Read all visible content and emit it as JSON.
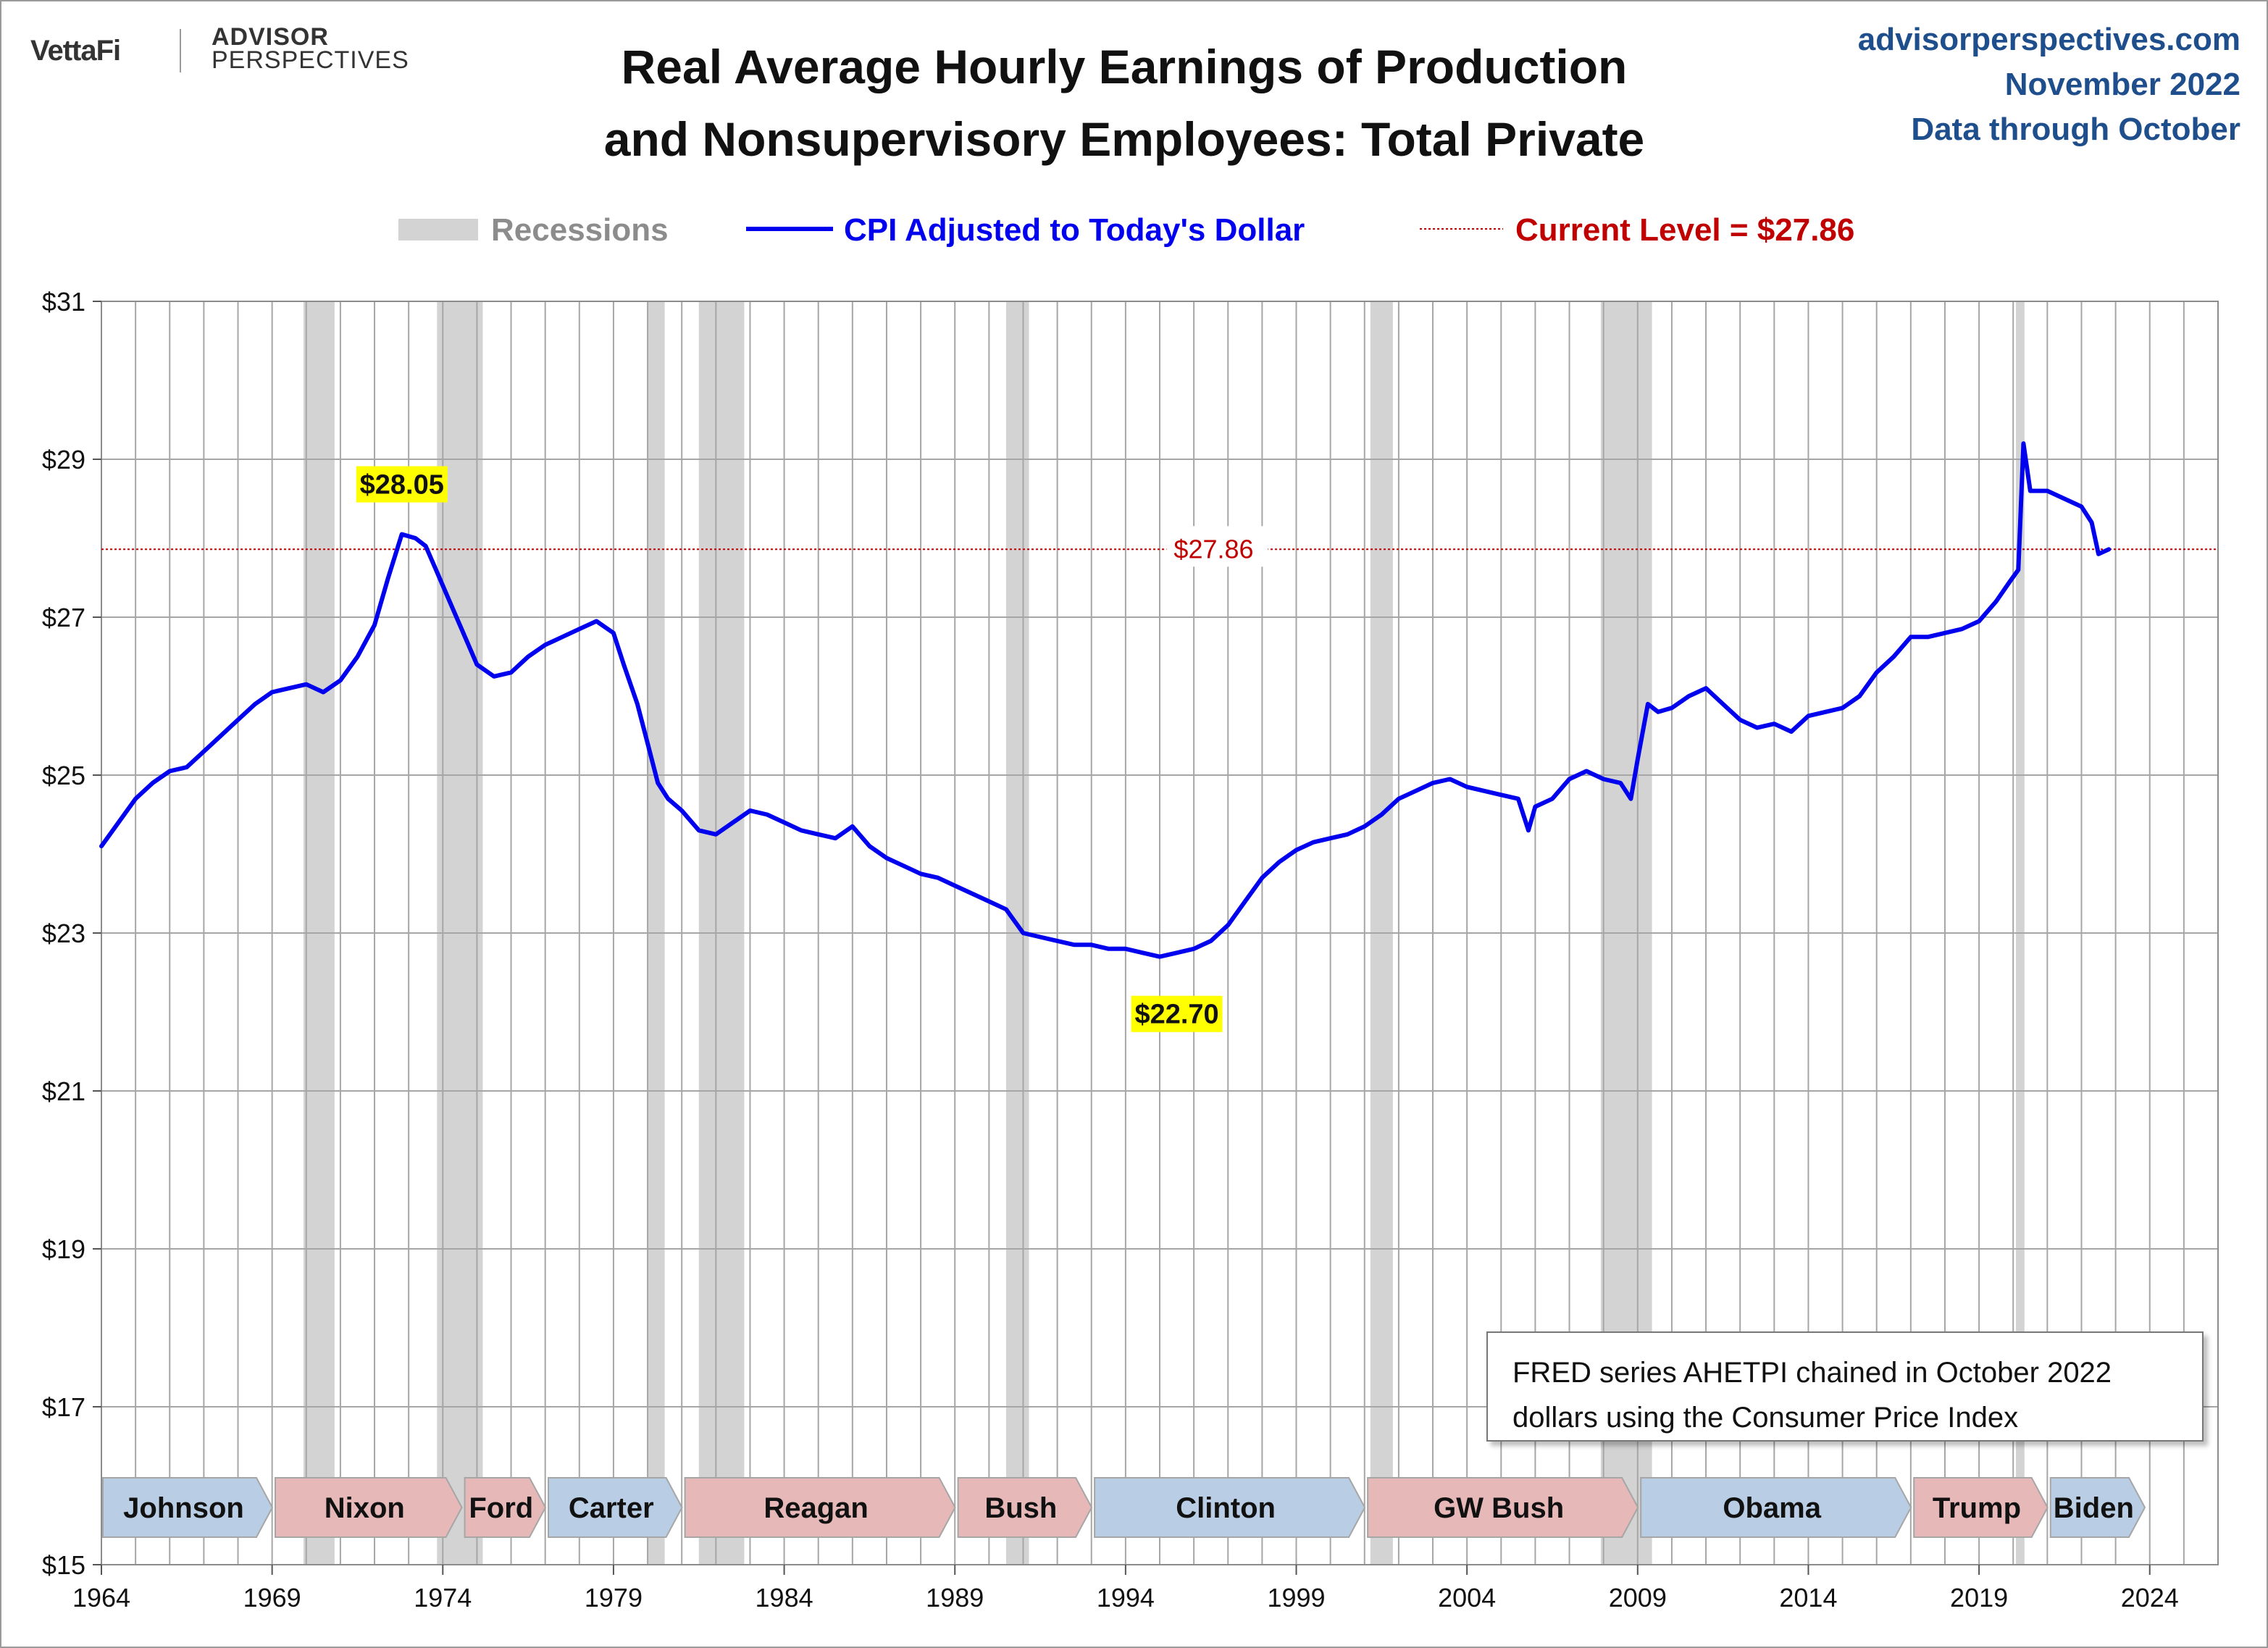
{
  "brand": {
    "vettafi": "VettaFi",
    "advisor": "ADVISOR",
    "perspectives": "PERSPECTIVES"
  },
  "header": {
    "title_line1": "Real Average Hourly Earnings of Production",
    "title_line2": "and Nonsupervisory Employees: Total Private",
    "site": "advisorperspectives.com",
    "date": "November 2022",
    "data_through": "Data through October"
  },
  "legend": {
    "recessions": "Recessions",
    "series": "CPI Adjusted to Today's Dollar",
    "current": "Current Level = $27.86"
  },
  "note": {
    "line1": "FRED series AHETPI chained in October 2022",
    "line2": "dollars using the Consumer Price Index"
  },
  "colors": {
    "line": "#0000ee",
    "recession": "#d3d3d3",
    "current_line": "#c00000",
    "grid": "#a6a6a6",
    "highlight": "#ffff00",
    "dem_arrow": "#b9cde4",
    "rep_arrow": "#e6b9b8"
  },
  "chart_data": {
    "type": "line",
    "xlim": [
      1964,
      2026
    ],
    "ylim": [
      15,
      31
    ],
    "x_ticks": [
      1964,
      1969,
      1974,
      1979,
      1984,
      1989,
      1994,
      1999,
      2004,
      2009,
      2014,
      2019,
      2024
    ],
    "x_tick_labels": [
      "1964",
      "1969",
      "1974",
      "1979",
      "1984",
      "1989",
      "1994",
      "1999",
      "2004",
      "2009",
      "2014",
      "2019",
      "2024"
    ],
    "y_ticks": [
      15,
      17,
      19,
      21,
      23,
      25,
      27,
      29,
      31
    ],
    "y_tick_labels": [
      "$15",
      "$17",
      "$19",
      "$21",
      "$23",
      "$25",
      "$27",
      "$29",
      "$31"
    ],
    "grid": true,
    "current_level": 27.86,
    "current_label": "$27.86",
    "annotations": [
      {
        "label": "$28.05",
        "x": 1972.8,
        "y": 28.05,
        "highlight": true
      },
      {
        "label": "$22.70",
        "x": 1995.5,
        "y": 22.7,
        "highlight": true
      }
    ],
    "recessions": [
      [
        1969.92,
        1970.83
      ],
      [
        1973.83,
        1975.17
      ],
      [
        1980.0,
        1980.5
      ],
      [
        1981.5,
        1982.83
      ],
      [
        1990.5,
        1991.17
      ],
      [
        2001.17,
        2001.83
      ],
      [
        2007.92,
        2009.42
      ],
      [
        2020.08,
        2020.33
      ]
    ],
    "presidents": [
      {
        "name": "Johnson",
        "start": 1964.0,
        "end": 1969.05,
        "party": "D"
      },
      {
        "name": "Nixon",
        "start": 1969.05,
        "end": 1974.6,
        "party": "R"
      },
      {
        "name": "Ford",
        "start": 1974.6,
        "end": 1977.05,
        "party": "R"
      },
      {
        "name": "Carter",
        "start": 1977.05,
        "end": 1981.05,
        "party": "D"
      },
      {
        "name": "Reagan",
        "start": 1981.05,
        "end": 1989.05,
        "party": "R"
      },
      {
        "name": "Bush",
        "start": 1989.05,
        "end": 1993.05,
        "party": "R"
      },
      {
        "name": "Clinton",
        "start": 1993.05,
        "end": 2001.05,
        "party": "D"
      },
      {
        "name": "GW Bush",
        "start": 2001.05,
        "end": 2009.05,
        "party": "R"
      },
      {
        "name": "Obama",
        "start": 2009.05,
        "end": 2017.05,
        "party": "D"
      },
      {
        "name": "Trump",
        "start": 2017.05,
        "end": 2021.05,
        "party": "R"
      },
      {
        "name": "Biden",
        "start": 2021.05,
        "end": 2023.9,
        "party": "D"
      }
    ],
    "series": [
      {
        "name": "CPI Adjusted to Today's Dollar",
        "x": [
          1964.0,
          1964.5,
          1965.0,
          1965.5,
          1966.0,
          1966.5,
          1967.0,
          1967.5,
          1968.0,
          1968.5,
          1969.0,
          1969.5,
          1970.0,
          1970.5,
          1971.0,
          1971.5,
          1972.0,
          1972.4,
          1972.8,
          1973.2,
          1973.5,
          1973.8,
          1974.2,
          1974.6,
          1975.0,
          1975.5,
          1976.0,
          1976.5,
          1977.0,
          1977.5,
          1978.0,
          1978.5,
          1979.0,
          1979.3,
          1979.7,
          1980.0,
          1980.3,
          1980.6,
          1981.0,
          1981.5,
          1982.0,
          1982.5,
          1983.0,
          1983.5,
          1984.0,
          1984.5,
          1985.0,
          1985.5,
          1986.0,
          1986.5,
          1987.0,
          1987.5,
          1988.0,
          1988.5,
          1989.0,
          1989.5,
          1990.0,
          1990.5,
          1991.0,
          1991.5,
          1992.0,
          1992.5,
          1993.0,
          1993.5,
          1994.0,
          1994.5,
          1995.0,
          1995.5,
          1996.0,
          1996.5,
          1997.0,
          1997.5,
          1998.0,
          1998.5,
          1999.0,
          1999.5,
          2000.0,
          2000.5,
          2001.0,
          2001.5,
          2002.0,
          2002.5,
          2003.0,
          2003.5,
          2004.0,
          2004.5,
          2005.0,
          2005.5,
          2005.8,
          2006.0,
          2006.5,
          2007.0,
          2007.5,
          2008.0,
          2008.5,
          2008.8,
          2009.0,
          2009.3,
          2009.6,
          2010.0,
          2010.5,
          2011.0,
          2011.5,
          2012.0,
          2012.5,
          2013.0,
          2013.5,
          2014.0,
          2014.5,
          2015.0,
          2015.5,
          2016.0,
          2016.5,
          2017.0,
          2017.5,
          2018.0,
          2018.5,
          2019.0,
          2019.5,
          2019.9,
          2020.15,
          2020.3,
          2020.5,
          2021.0,
          2021.5,
          2022.0,
          2022.3,
          2022.5,
          2022.8
        ],
        "values": [
          24.1,
          24.4,
          24.7,
          24.9,
          25.05,
          25.1,
          25.3,
          25.5,
          25.7,
          25.9,
          26.05,
          26.1,
          26.15,
          26.05,
          26.2,
          26.5,
          26.9,
          27.5,
          28.05,
          28.0,
          27.9,
          27.6,
          27.2,
          26.8,
          26.4,
          26.25,
          26.3,
          26.5,
          26.65,
          26.75,
          26.85,
          26.95,
          26.8,
          26.4,
          25.9,
          25.4,
          24.9,
          24.7,
          24.55,
          24.3,
          24.25,
          24.4,
          24.55,
          24.5,
          24.4,
          24.3,
          24.25,
          24.2,
          24.35,
          24.1,
          23.95,
          23.85,
          23.75,
          23.7,
          23.6,
          23.5,
          23.4,
          23.3,
          23.0,
          22.95,
          22.9,
          22.85,
          22.85,
          22.8,
          22.8,
          22.75,
          22.7,
          22.75,
          22.8,
          22.9,
          23.1,
          23.4,
          23.7,
          23.9,
          24.05,
          24.15,
          24.2,
          24.25,
          24.35,
          24.5,
          24.7,
          24.8,
          24.9,
          24.95,
          24.85,
          24.8,
          24.75,
          24.7,
          24.3,
          24.6,
          24.7,
          24.95,
          25.05,
          24.95,
          24.9,
          24.7,
          25.2,
          25.9,
          25.8,
          25.85,
          26.0,
          26.1,
          25.9,
          25.7,
          25.6,
          25.65,
          25.55,
          25.75,
          25.8,
          25.85,
          26.0,
          26.3,
          26.5,
          26.75,
          26.75,
          26.8,
          26.85,
          26.95,
          27.2,
          27.45,
          27.6,
          29.2,
          28.6,
          28.6,
          28.5,
          28.4,
          28.2,
          27.8,
          27.86
        ]
      }
    ]
  }
}
